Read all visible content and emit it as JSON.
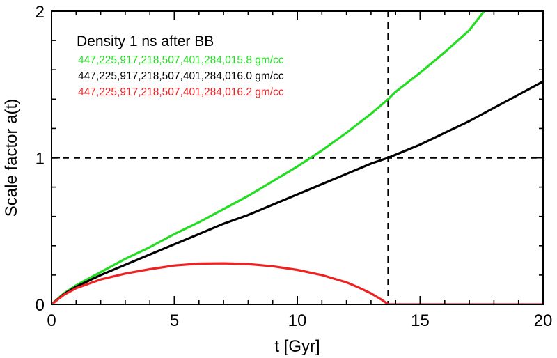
{
  "chart_data": {
    "type": "line",
    "title": "Density 1 ns after BB",
    "xlabel": "t [Gyr]",
    "ylabel": "Scale factor a(t)",
    "xlim": [
      0,
      20
    ],
    "ylim": [
      0,
      2
    ],
    "xticks": [
      0,
      5,
      10,
      15,
      20
    ],
    "yticks": [
      0,
      1,
      2
    ],
    "x_tick_labels": [
      "0",
      "5",
      "10",
      "15",
      "20"
    ],
    "y_tick_labels": [
      "0",
      "1",
      "2"
    ],
    "grid": false,
    "legend_position": "top-left",
    "series": [
      {
        "name": "447,225,917,218,507,401,284,015.8 gm/cc",
        "color": "#22dd22",
        "x": [
          0,
          0.5,
          1,
          2,
          3,
          4,
          5,
          6,
          7,
          8,
          9,
          10,
          11,
          12,
          13,
          13.7,
          14,
          15,
          16,
          17,
          17.6
        ],
        "y": [
          0,
          0.075,
          0.13,
          0.22,
          0.31,
          0.39,
          0.48,
          0.56,
          0.65,
          0.74,
          0.84,
          0.94,
          1.05,
          1.17,
          1.3,
          1.4,
          1.45,
          1.58,
          1.72,
          1.87,
          2.0
        ]
      },
      {
        "name": "447,225,917,218,507,401,284,016.0 gm/cc",
        "color": "#000000",
        "x": [
          0,
          0.5,
          1,
          2,
          3,
          4,
          5,
          6,
          7,
          8,
          9,
          10,
          11,
          12,
          13,
          13.7,
          15,
          16,
          17,
          18,
          19,
          20
        ],
        "y": [
          0,
          0.07,
          0.12,
          0.2,
          0.27,
          0.34,
          0.41,
          0.48,
          0.55,
          0.61,
          0.68,
          0.75,
          0.82,
          0.89,
          0.96,
          1.0,
          1.09,
          1.17,
          1.25,
          1.34,
          1.43,
          1.52
        ]
      },
      {
        "name": "447,225,917,218,507,401,284,016.2 gm/cc",
        "color": "#ee2222",
        "x": [
          0,
          0.5,
          1,
          2,
          3,
          4,
          5,
          6,
          7,
          8,
          9,
          10,
          11,
          12,
          12.5,
          13,
          13.4,
          13.6,
          13.7,
          15,
          20
        ],
        "y": [
          0,
          0.065,
          0.11,
          0.17,
          0.21,
          0.24,
          0.265,
          0.278,
          0.28,
          0.275,
          0.26,
          0.235,
          0.2,
          0.15,
          0.115,
          0.075,
          0.035,
          0.012,
          0,
          0,
          0
        ]
      }
    ],
    "reference_lines": [
      {
        "orientation": "vertical",
        "value": 13.7,
        "style": "dashed",
        "color": "#000000"
      },
      {
        "orientation": "horizontal",
        "value": 1,
        "style": "dashed",
        "color": "#000000"
      }
    ]
  }
}
